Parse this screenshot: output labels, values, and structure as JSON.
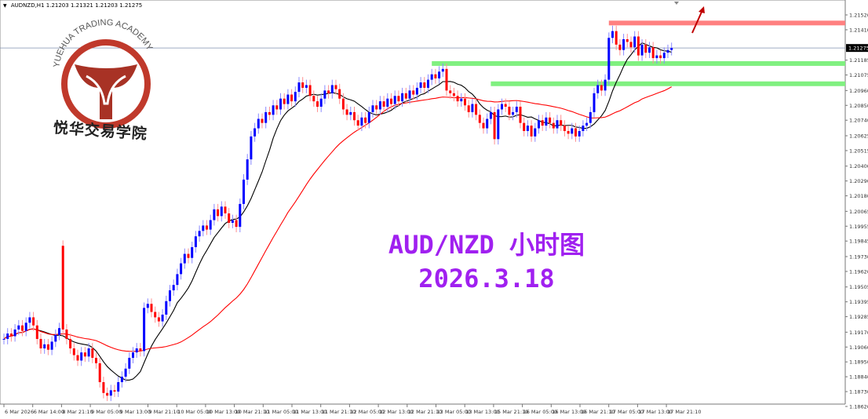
{
  "header": {
    "symbol": "AUDNZD,H1",
    "ohlc": "1.21203 1.21321 1.21203 1.21275"
  },
  "overlay": {
    "title": "AUD/NZD 小时图",
    "date": "2026.3.18",
    "color": "#a020f0"
  },
  "logo": {
    "text_en": "YUEHUA TRADING ACADEMY",
    "text_cn": "悦华交易学院",
    "color": "#c0392b"
  },
  "chart_data": {
    "type": "candlestick",
    "symbol": "AUDNZD",
    "timeframe": "H1",
    "bull_color": "#0000ff",
    "bear_color": "#ff0000",
    "ylim": [
      1.1862,
      1.2152
    ],
    "y_ticks": [
      "1.21520",
      "1.21410",
      "1.21185",
      "1.21075",
      "1.20960",
      "1.20850",
      "1.20740",
      "1.20625",
      "1.20515",
      "1.20400",
      "1.20290",
      "1.20180",
      "1.20065",
      "1.19955",
      "1.19845",
      "1.19730",
      "1.19620",
      "1.19505",
      "1.19395",
      "1.19285",
      "1.19170",
      "1.19060",
      "1.18950",
      "1.18840",
      "1.18730",
      "1.18620"
    ],
    "current_price": "1.21275",
    "x_ticks": [
      "6 Mar 2026",
      "6 Mar 14:00",
      "8 Mar 21:10",
      "9 Mar 05:00",
      "9 Mar 13:00",
      "9 Mar 21:10",
      "10 Mar 05:00",
      "10 Mar 13:00",
      "10 Mar 21:10",
      "11 Mar 05:00",
      "11 Mar 13:00",
      "11 Mar 21:10",
      "12 Mar 05:00",
      "12 Mar 13:00",
      "12 Mar 21:10",
      "13 Mar 05:00",
      "13 Mar 13:00",
      "15 Mar 21:10",
      "16 Mar 05:00",
      "16 Mar 13:00",
      "16 Mar 21:10",
      "17 Mar 05:00",
      "17 Mar 13:00",
      "17 Mar 21:10"
    ],
    "closes": [
      1.1912,
      1.1916,
      1.1914,
      1.1919,
      1.1922,
      1.1918,
      1.1924,
      1.1928,
      1.1922,
      1.1912,
      1.1905,
      1.1908,
      1.1904,
      1.191,
      1.1915,
      1.192,
      1.1919,
      1.1912,
      1.1905,
      1.19,
      1.1896,
      1.1902,
      1.1899,
      1.1905,
      1.1898,
      1.1894,
      1.188,
      1.1872,
      1.187,
      1.1874,
      1.1873,
      1.188,
      1.1884,
      1.189,
      1.1898,
      1.1902,
      1.1905,
      1.1903,
      1.1935,
      1.1938,
      1.1932,
      1.1928,
      1.1925,
      1.193,
      1.194,
      1.1948,
      1.1952,
      1.196,
      1.1968,
      1.1975,
      1.1972,
      1.198,
      1.1988,
      1.1992,
      1.1996,
      1.1993,
      1.2,
      1.2008,
      1.2003,
      1.201,
      1.2005,
      1.1998,
      1.2,
      1.1995,
      1.2012,
      1.203,
      1.2045,
      1.2062,
      1.2068,
      1.2075,
      1.2072,
      1.208,
      1.2078,
      1.2085,
      1.2082,
      1.209,
      1.2086,
      1.2093,
      1.2088,
      1.2095,
      1.2102,
      1.2098,
      1.21,
      1.2092,
      1.2088,
      1.2084,
      1.209,
      1.2096,
      1.2094,
      1.21,
      1.2097,
      1.209,
      1.2082,
      1.2078,
      1.208,
      1.2074,
      1.207,
      1.2076,
      1.2072,
      1.208,
      1.2085,
      1.2082,
      1.2088,
      1.2084,
      1.209,
      1.2086,
      1.2092,
      1.2088,
      1.2094,
      1.209,
      1.2096,
      1.2093,
      1.2098,
      1.2102,
      1.2098,
      1.2104,
      1.2108,
      1.2105,
      1.211,
      1.2112,
      1.2096,
      1.2094,
      1.2092,
      1.2088,
      1.209,
      1.2085,
      1.208,
      1.2086,
      1.2078,
      1.2072,
      1.2068,
      1.2075,
      1.208,
      1.206,
      1.2082,
      1.2086,
      1.2084,
      1.2078,
      1.208,
      1.2084,
      1.2072,
      1.2066,
      1.207,
      1.2062,
      1.2068,
      1.2074,
      1.207,
      1.2076,
      1.2072,
      1.2068,
      1.2074,
      1.207,
      1.2066,
      1.2064,
      1.2068,
      1.2062,
      1.2066,
      1.207,
      1.2072,
      1.208,
      1.2094,
      1.21,
      1.2096,
      1.2104,
      1.2135,
      1.214,
      1.213,
      1.2126,
      1.2134,
      1.2132,
      1.2128,
      1.2136,
      1.2122,
      1.213,
      1.2124,
      1.2128,
      1.212,
      1.2122,
      1.212,
      1.2124,
      1.2126,
      1.21275
    ],
    "spike_bar": {
      "index": 16,
      "open": 1.1981
    },
    "moving_averages": [
      {
        "color": "#000000",
        "period": 10
      },
      {
        "color": "#ff0000",
        "period": 40
      }
    ],
    "levels": [
      {
        "price": 1.2146,
        "color": "#ff8080",
        "from_index": 164
      },
      {
        "price": 1.2116,
        "color": "#80f080",
        "from_index": 116
      },
      {
        "price": 1.2101,
        "color": "#80f080",
        "from_index": 132
      }
    ],
    "annotation": {
      "type": "arrow-up",
      "color": "#c00000"
    }
  }
}
